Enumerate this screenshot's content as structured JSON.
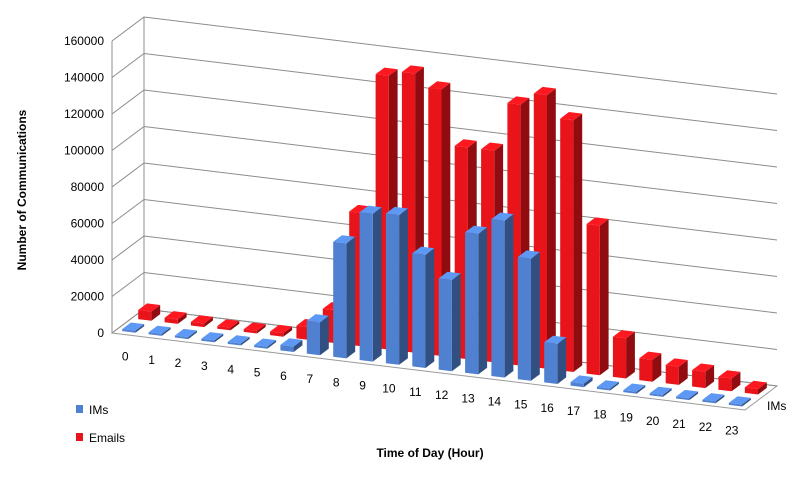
{
  "chart_data": {
    "type": "bar",
    "title": "",
    "xlabel": "Time of Day (Hour)",
    "ylabel": "Number of Communications",
    "ylim": [
      0,
      160000
    ],
    "yticks": [
      0,
      20000,
      40000,
      60000,
      80000,
      100000,
      120000,
      140000,
      160000
    ],
    "categories": [
      "0",
      "1",
      "2",
      "3",
      "4",
      "5",
      "6",
      "7",
      "8",
      "9",
      "10",
      "11",
      "12",
      "13",
      "14",
      "15",
      "16",
      "17",
      "18",
      "19",
      "20",
      "21",
      "22",
      "23"
    ],
    "depth_label": "IMs",
    "grid": true,
    "legend_position": "bottom-left",
    "series": [
      {
        "name": "IMs",
        "color": "#4f81d0",
        "values": [
          0,
          0,
          0,
          0,
          0,
          0,
          3000,
          18000,
          63000,
          81000,
          82000,
          62000,
          50000,
          77000,
          86000,
          67000,
          22000,
          2000,
          800,
          600,
          500,
          400,
          300,
          200
        ]
      },
      {
        "name": "Emails",
        "color": "#e8141a",
        "values": [
          5000,
          2500,
          2000,
          1500,
          1500,
          2000,
          7000,
          18000,
          73000,
          150000,
          153000,
          146000,
          116000,
          116000,
          143000,
          150000,
          138000,
          82000,
          22000,
          12000,
          10000,
          9000,
          7000,
          3000
        ]
      }
    ]
  }
}
